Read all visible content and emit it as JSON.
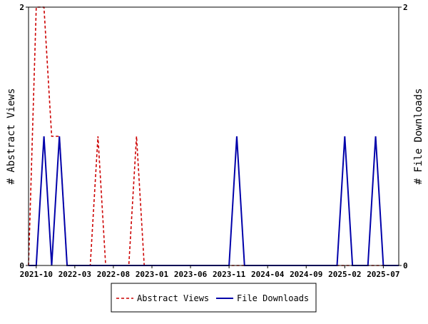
{
  "chart_data": {
    "type": "line",
    "x_ticks": [
      "2021-10",
      "2022-03",
      "2022-08",
      "2023-01",
      "2023-06",
      "2023-11",
      "2024-04",
      "2024-09",
      "2025-02",
      "2025-07"
    ],
    "y_left_ticks": [
      "0",
      "2"
    ],
    "y_right_ticks": [
      "0",
      "2"
    ],
    "ylabel_left": "# Abstract Views",
    "ylabel_right": "# File Downloads",
    "ylim_left": [
      0,
      2
    ],
    "ylim_right": [
      0,
      2
    ],
    "xlim": [
      "2021-09",
      "2025-09"
    ],
    "legend_position": "bottom-center",
    "grid": false,
    "series": [
      {
        "name": "Abstract Views",
        "color": "#cc0000",
        "style": "dashed",
        "axis": "left",
        "points": [
          [
            "2021-09",
            0
          ],
          [
            "2021-10",
            2
          ],
          [
            "2021-11",
            2
          ],
          [
            "2021-12",
            1
          ],
          [
            "2022-01",
            1
          ],
          [
            "2022-02",
            0
          ],
          [
            "2022-05",
            0
          ],
          [
            "2022-06",
            1
          ],
          [
            "2022-07",
            0
          ],
          [
            "2022-10",
            0
          ],
          [
            "2022-11",
            1
          ],
          [
            "2022-12",
            0
          ],
          [
            "2025-09",
            0
          ]
        ]
      },
      {
        "name": "File Downloads",
        "color": "#0000aa",
        "style": "solid",
        "axis": "right",
        "points": [
          [
            "2021-09",
            0
          ],
          [
            "2021-10",
            0
          ],
          [
            "2021-11",
            1
          ],
          [
            "2021-12",
            0
          ],
          [
            "2022-01",
            1
          ],
          [
            "2022-02",
            0
          ],
          [
            "2023-11",
            0
          ],
          [
            "2023-12",
            1
          ],
          [
            "2024-01",
            0
          ],
          [
            "2025-01",
            0
          ],
          [
            "2025-02",
            1
          ],
          [
            "2025-03",
            0
          ],
          [
            "2025-05",
            0
          ],
          [
            "2025-06",
            1
          ],
          [
            "2025-07",
            0
          ],
          [
            "2025-09",
            0
          ]
        ]
      }
    ]
  }
}
